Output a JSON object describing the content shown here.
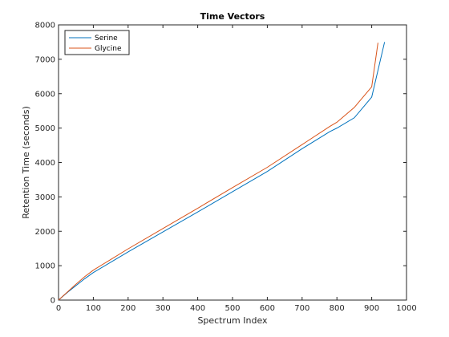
{
  "chart_data": {
    "type": "line",
    "title": "Time Vectors",
    "xlabel": "Spectrum Index",
    "ylabel": "Retention Time (seconds)",
    "xlim": [
      0,
      1000
    ],
    "ylim": [
      0,
      8000
    ],
    "xticks": [
      0,
      100,
      200,
      300,
      400,
      500,
      600,
      700,
      800,
      900,
      1000
    ],
    "yticks": [
      0,
      1000,
      2000,
      3000,
      4000,
      5000,
      6000,
      7000,
      8000
    ],
    "grid": false,
    "legend_placement": "top-left",
    "series": [
      {
        "name": "Serine",
        "color": "#0072BD",
        "points": [
          [
            0,
            0
          ],
          [
            25,
            220
          ],
          [
            50,
            420
          ],
          [
            75,
            620
          ],
          [
            100,
            800
          ],
          [
            150,
            1100
          ],
          [
            200,
            1400
          ],
          [
            300,
            1980
          ],
          [
            400,
            2560
          ],
          [
            500,
            3150
          ],
          [
            600,
            3740
          ],
          [
            700,
            4400
          ],
          [
            780,
            4900
          ],
          [
            800,
            5000
          ],
          [
            850,
            5300
          ],
          [
            900,
            5900
          ],
          [
            937,
            7500
          ]
        ]
      },
      {
        "name": "Glycine",
        "color": "#D95319",
        "points": [
          [
            0,
            0
          ],
          [
            25,
            230
          ],
          [
            50,
            460
          ],
          [
            75,
            680
          ],
          [
            100,
            870
          ],
          [
            150,
            1180
          ],
          [
            200,
            1490
          ],
          [
            300,
            2080
          ],
          [
            400,
            2670
          ],
          [
            500,
            3270
          ],
          [
            600,
            3860
          ],
          [
            700,
            4520
          ],
          [
            780,
            5050
          ],
          [
            800,
            5170
          ],
          [
            850,
            5600
          ],
          [
            900,
            6200
          ],
          [
            918,
            7480
          ]
        ]
      }
    ]
  }
}
